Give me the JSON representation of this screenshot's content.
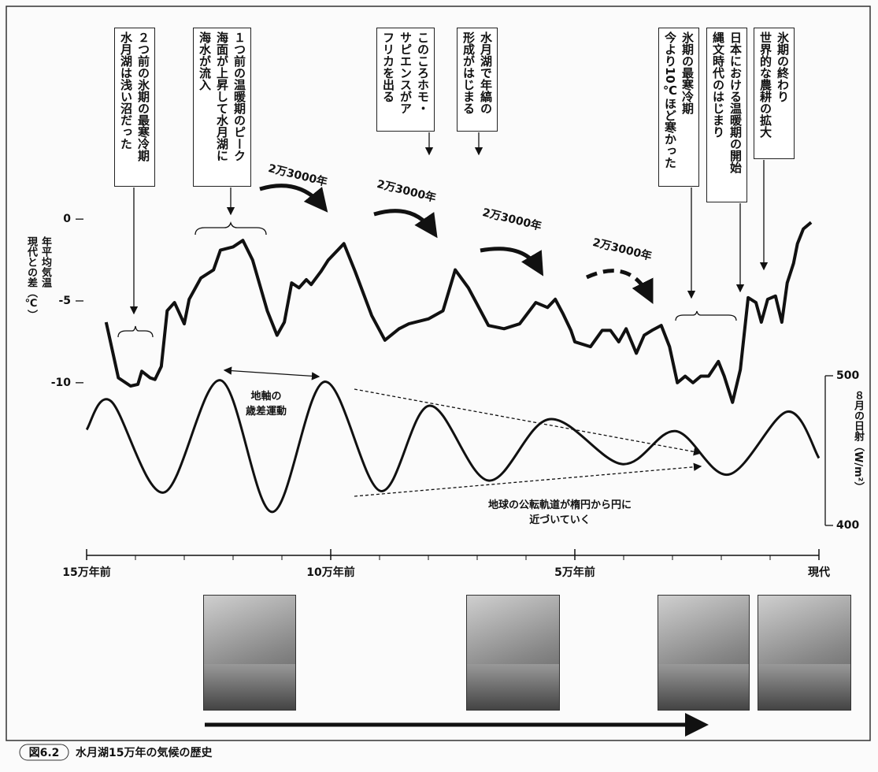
{
  "chart_data": {
    "type": "line",
    "figure_label": "図6.2",
    "title": "水月湖15万年の気候の歴史",
    "ylabel": [
      "年平均気温",
      "現代との差（℃）"
    ],
    "y2label": "８月の日射（W/m²）",
    "xlim": [
      150000,
      0
    ],
    "xticks": [
      {
        "value": 150000,
        "label": "15万年前"
      },
      {
        "value": 100000,
        "label": "10万年前"
      },
      {
        "value": 50000,
        "label": "5万年前"
      },
      {
        "value": 0,
        "label": "現代"
      }
    ],
    "xminor_ticks": [
      140000,
      130000,
      120000,
      110000,
      90000,
      80000,
      70000,
      60000,
      40000,
      30000,
      20000,
      10000
    ],
    "ylim": [
      -11.5,
      1.5
    ],
    "yticks": [
      0,
      -5,
      -10
    ],
    "y2lim": [
      386,
      536
    ],
    "y2ticks": [
      400,
      500
    ],
    "series": [
      {
        "color": "#111111",
        "x": [
          146000,
          143500,
          141000,
          139500,
          138700,
          137000,
          136000,
          134700,
          133500,
          132000,
          130000,
          129000,
          126600,
          124000,
          122600,
          120000,
          118000,
          116000,
          113000,
          111000,
          109500,
          108000,
          106500,
          105000,
          104000,
          102000,
          100500,
          97300,
          95000,
          91600,
          88900,
          86000,
          84000,
          80000,
          77000,
          74500,
          71800,
          67700,
          64500,
          61300,
          58000,
          55600,
          54000,
          52400,
          50800,
          50000,
          46800,
          44400,
          42700,
          41000,
          39500,
          37400,
          35800,
          34200,
          32300,
          30600,
          29000,
          27400,
          25800,
          24200,
          22600,
          20600,
          19400,
          17700,
          16100,
          14500,
          12900,
          11800,
          10500,
          8900,
          7600,
          6500,
          5200,
          4400,
          3200,
          1600
        ],
        "values": [
          -6.3,
          -9.7,
          -10.2,
          -10.1,
          -9.3,
          -9.7,
          -9.8,
          -9.0,
          -5.6,
          -5.1,
          -6.4,
          -4.9,
          -3.6,
          -3.1,
          -1.9,
          -1.7,
          -1.3,
          -2.5,
          -5.6,
          -7.1,
          -6.3,
          -3.9,
          -4.2,
          -3.7,
          -4.0,
          -3.2,
          -2.5,
          -1.5,
          -3.2,
          -5.9,
          -7.4,
          -6.7,
          -6.4,
          -6.1,
          -5.6,
          -3.1,
          -4.2,
          -6.5,
          -6.7,
          -6.4,
          -5.1,
          -5.4,
          -4.9,
          -5.8,
          -6.8,
          -7.5,
          -7.8,
          -6.8,
          -6.8,
          -7.5,
          -6.7,
          -8.2,
          -7.1,
          -6.8,
          -6.5,
          -7.8,
          -10.0,
          -9.6,
          -10.0,
          -9.6,
          -9.6,
          -8.7,
          -9.6,
          -11.2,
          -9.2,
          -4.8,
          -5.1,
          -6.3,
          -4.9,
          -4.7,
          -6.3,
          -3.9,
          -2.7,
          -1.5,
          -0.6,
          -0.2
        ]
      },
      {
        "color": "#111111",
        "axis": "y2",
        "x": [
          150000,
          145000,
          134200,
          122600,
          112000,
          101300,
          89800,
          79800,
          67700,
          55200,
          40300,
          29400,
          18500,
          6500,
          0
        ],
        "values": [
          464,
          483,
          422,
          497,
          409,
          496,
          423,
          480,
          430,
          471,
          441,
          463,
          434,
          476,
          445
        ]
      }
    ],
    "annotations": [
      [
        "２つ前の氷期の最寒冷期",
        "水月湖は浅い沼だった"
      ],
      [
        "１つ前の温暖期のピーク",
        "海面が上昇して水月湖に",
        "海水が流入"
      ],
      [
        "このころホモ・",
        "サピエンスがア",
        "フリカを出る"
      ],
      [
        "水月湖で年縞の",
        "形成がはじまる"
      ],
      [
        "氷期の最寒冷期",
        "今より10℃ほど寒かった"
      ],
      [
        "日本における温暖期の開始",
        "縄文時代のはじまり"
      ],
      [
        "氷期の終わり",
        "世界的な農耕の拡大"
      ]
    ],
    "cycle_labels": [
      "2万3000年",
      "2万3000年",
      "2万3000年",
      "2万3000年"
    ],
    "precession_label": [
      "地軸の",
      "歳差運動"
    ],
    "orbit_label": [
      "地球の公転軌道が楕円から円に",
      "近づいていく"
    ]
  }
}
